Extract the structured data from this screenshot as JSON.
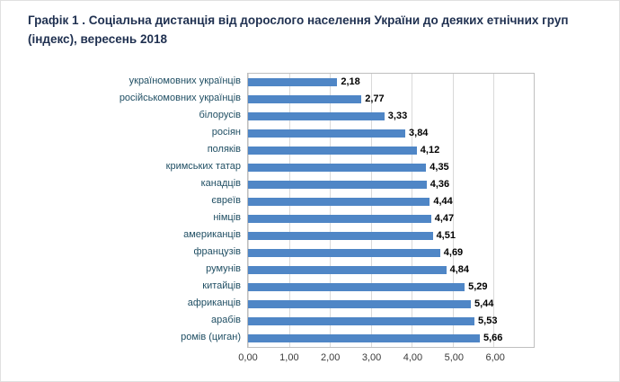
{
  "chart_data": {
    "type": "bar",
    "orientation": "horizontal",
    "title": "Графік 1 . Соціальна дистанція від дорослого населення України до деяких етнічних груп (індекс), вересень 2018",
    "categories": [
      "україномовних українців",
      "російськомовних українців",
      "білорусів",
      "росіян",
      "поляків",
      "кримських татар",
      "канадців",
      "євреїв",
      "німців",
      "американців",
      "французів",
      "румунів",
      "китайців",
      "африканців",
      "арабів",
      "ромів (циган)"
    ],
    "values": [
      2.18,
      2.77,
      3.33,
      3.84,
      4.12,
      4.35,
      4.36,
      4.44,
      4.47,
      4.51,
      4.69,
      4.84,
      5.29,
      5.44,
      5.53,
      5.66
    ],
    "value_labels": [
      "2,18",
      "2,77",
      "3,33",
      "3,84",
      "4,12",
      "4,35",
      "4,36",
      "4,44",
      "4,47",
      "4,51",
      "4,69",
      "4,84",
      "5,29",
      "5,44",
      "5,53",
      "5,66"
    ],
    "x_ticks": [
      "0,00",
      "1,00",
      "2,00",
      "3,00",
      "4,00",
      "5,00",
      "6,00"
    ],
    "xlim": [
      0,
      6
    ],
    "grid": true,
    "legend": false,
    "bar_color": "#4f86c6",
    "category_label_color": "#1f4e63",
    "title_color": "#1f3050"
  }
}
